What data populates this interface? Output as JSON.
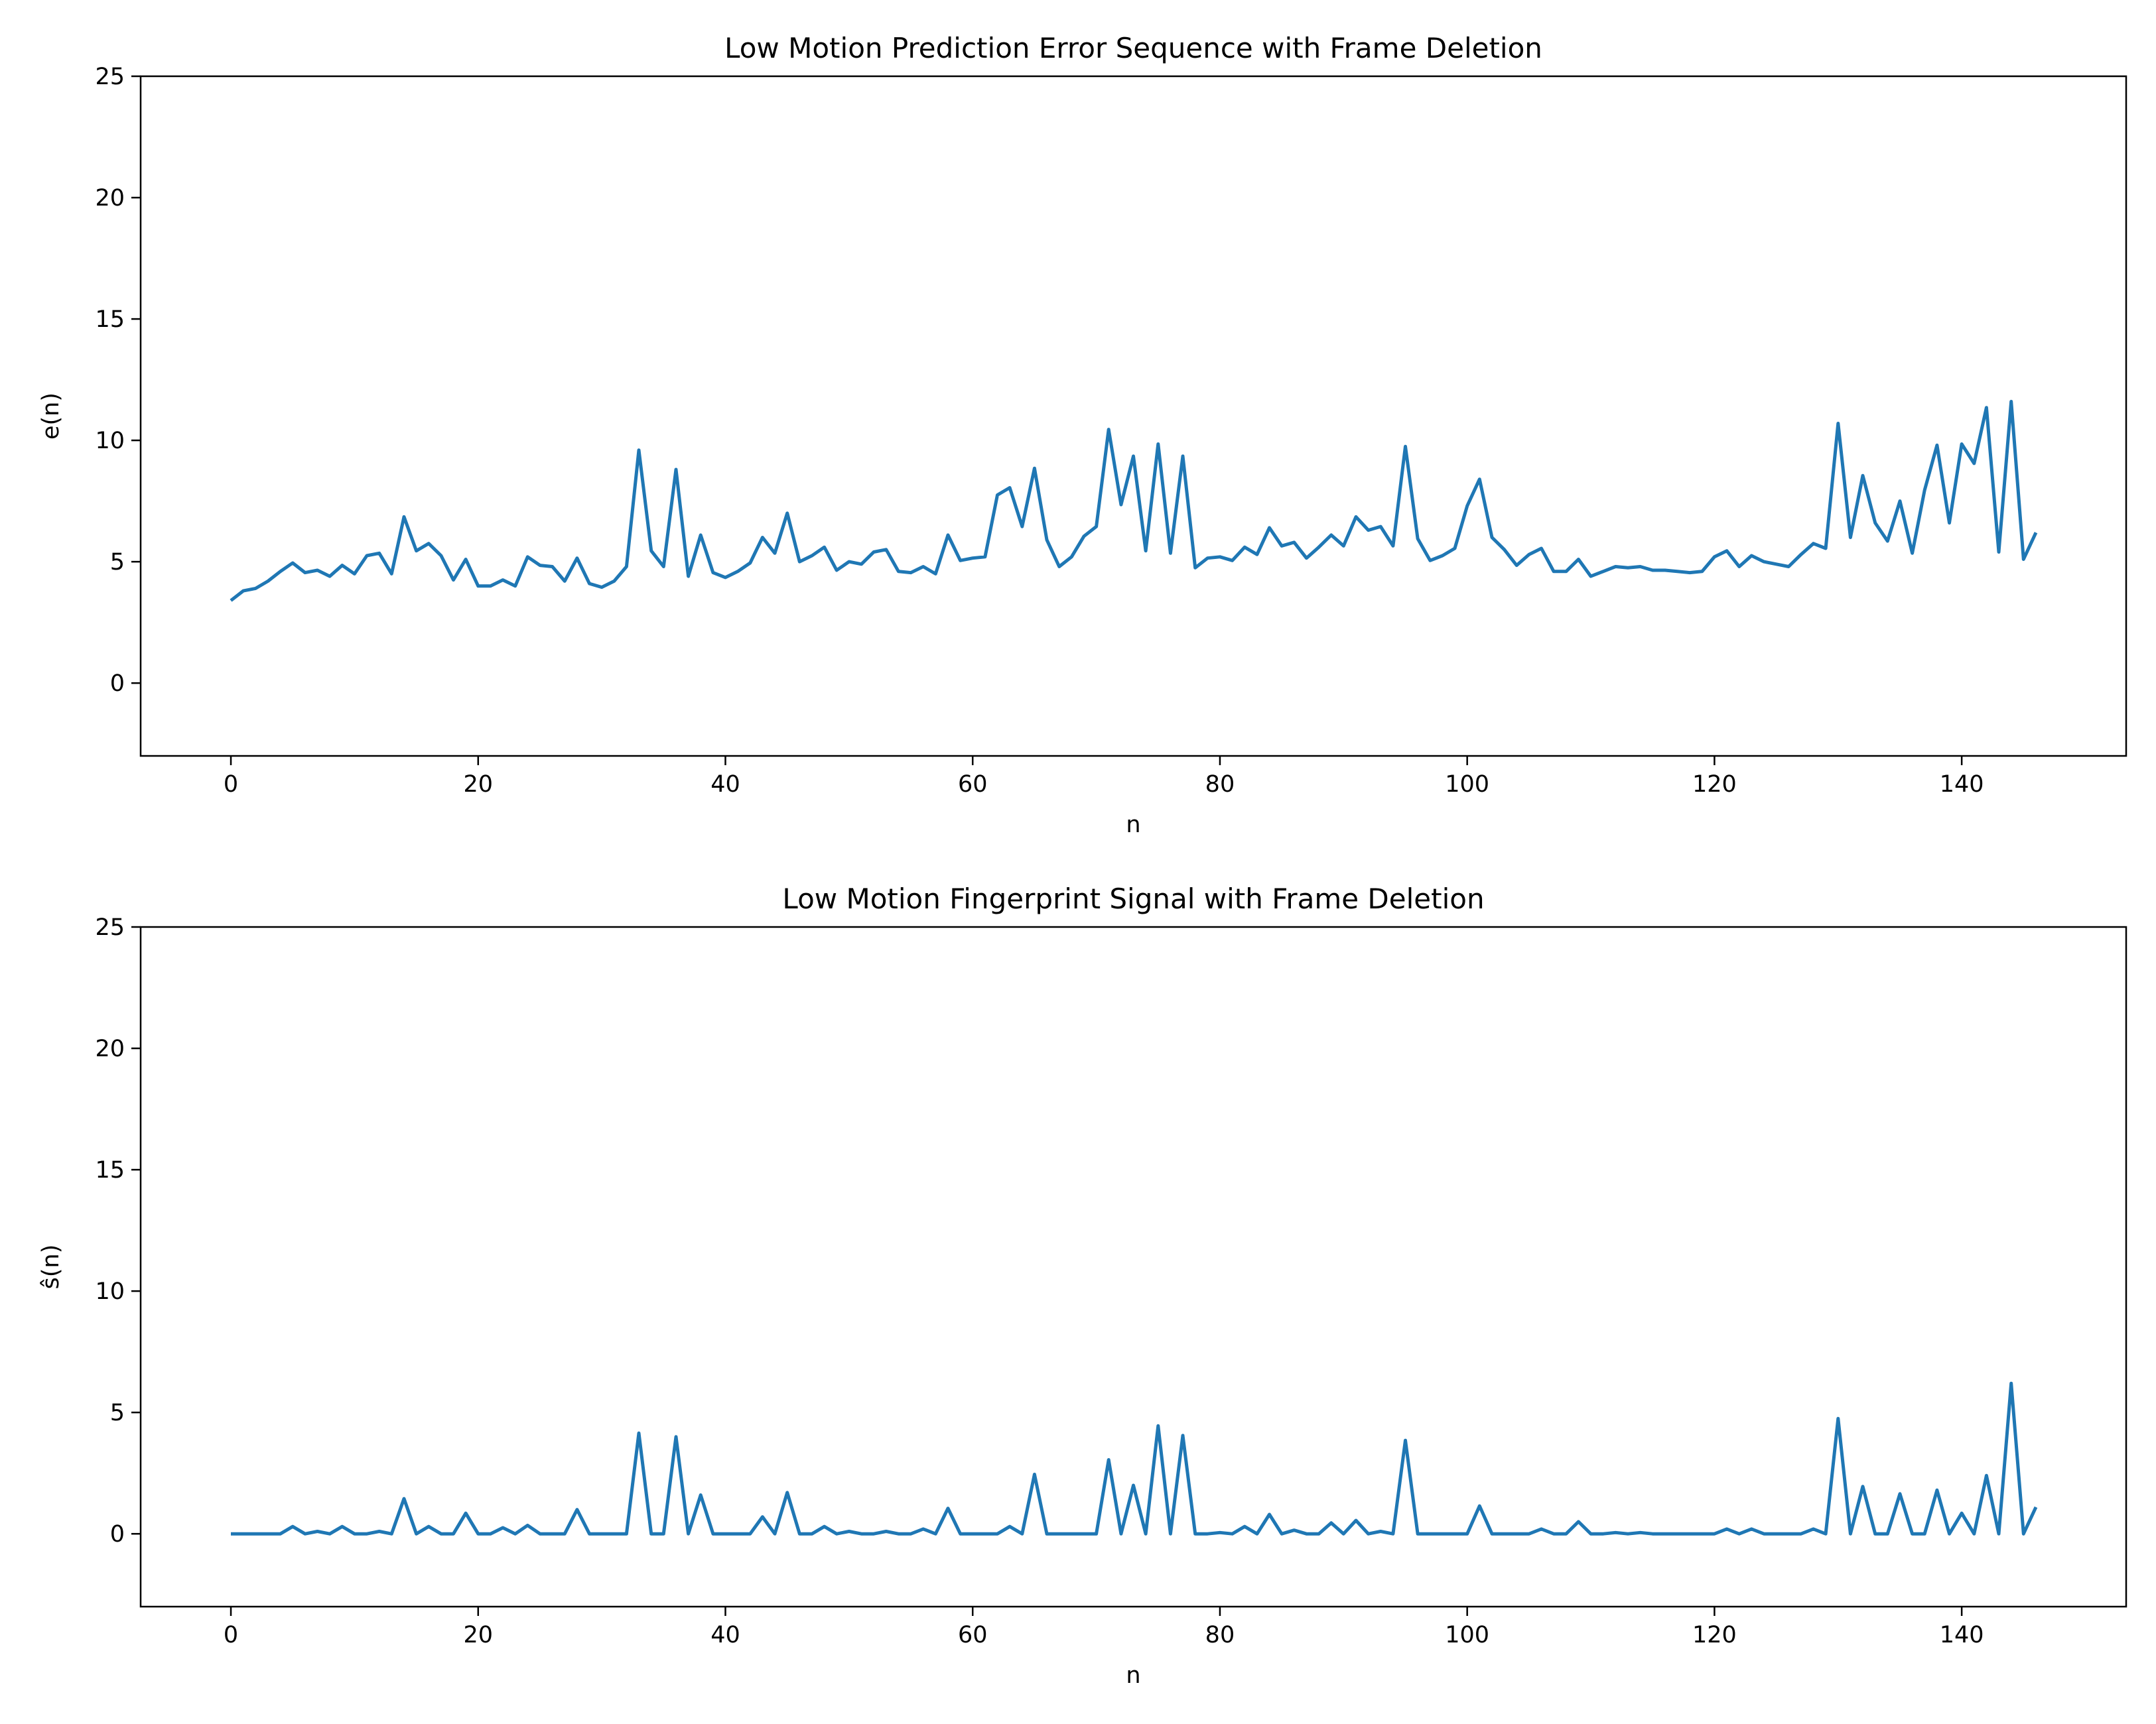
{
  "chart_data": [
    {
      "type": "line",
      "title": "Low Motion Prediction Error Sequence with Frame Deletion",
      "xlabel": "n",
      "ylabel": "e(n)",
      "xlim": [
        -7.3,
        153.3
      ],
      "ylim": [
        -3,
        25
      ],
      "xticks": [
        0,
        20,
        40,
        60,
        80,
        100,
        120,
        140
      ],
      "yticks": [
        0,
        5,
        10,
        15,
        20,
        25
      ],
      "grid": false,
      "color": "#1f77b4",
      "series": [
        {
          "x_start": 0,
          "values": [
            3.4,
            3.8,
            3.9,
            4.2,
            4.6,
            4.95,
            4.55,
            4.65,
            4.4,
            4.85,
            4.5,
            5.25,
            5.35,
            4.5,
            6.85,
            5.45,
            5.75,
            5.25,
            4.25,
            5.1,
            4.0,
            4.0,
            4.25,
            4.0,
            5.2,
            4.85,
            4.8,
            4.2,
            5.15,
            4.1,
            3.95,
            4.2,
            4.8,
            9.6,
            5.45,
            4.8,
            8.8,
            4.4,
            6.1,
            4.55,
            4.35,
            4.6,
            4.95,
            6.0,
            5.35,
            7.0,
            5.0,
            5.25,
            5.6,
            4.65,
            5.0,
            4.9,
            5.4,
            5.5,
            4.6,
            4.55,
            4.8,
            4.5,
            6.1,
            5.05,
            5.15,
            5.2,
            7.75,
            8.05,
            6.45,
            8.85,
            5.9,
            4.8,
            5.2,
            6.05,
            6.45,
            10.45,
            7.35,
            9.35,
            5.45,
            9.85,
            5.35,
            9.35,
            4.75,
            5.15,
            5.2,
            5.05,
            5.6,
            5.3,
            6.4,
            5.65,
            5.8,
            5.15,
            5.6,
            6.1,
            5.65,
            6.85,
            6.3,
            6.45,
            5.65,
            9.75,
            5.95,
            5.05,
            5.25,
            5.55,
            7.3,
            8.4,
            6.0,
            5.5,
            4.85,
            5.3,
            5.55,
            4.6,
            4.6,
            5.1,
            4.4,
            4.6,
            4.8,
            4.75,
            4.8,
            4.65,
            4.65,
            4.6,
            4.55,
            4.6,
            5.2,
            5.45,
            4.8,
            5.25,
            5.0,
            4.9,
            4.8,
            5.3,
            5.75,
            5.55,
            10.7,
            6.0,
            8.55,
            6.6,
            5.85,
            7.5,
            5.35,
            7.95,
            9.8,
            6.6,
            9.85,
            9.05,
            11.35,
            5.4,
            11.6,
            5.1,
            6.2
          ]
        }
      ]
    },
    {
      "type": "line",
      "title": "Low Motion Fingerprint Signal with Frame Deletion",
      "xlabel": "n",
      "ylabel": "ŝ(n)",
      "xlim": [
        -7.3,
        153.3
      ],
      "ylim": [
        -3,
        25
      ],
      "xticks": [
        0,
        20,
        40,
        60,
        80,
        100,
        120,
        140
      ],
      "yticks": [
        0,
        5,
        10,
        15,
        20,
        25
      ],
      "grid": false,
      "color": "#1f77b4",
      "series": [
        {
          "x_start": 0,
          "values": [
            0,
            0,
            0,
            0,
            0,
            0.3,
            0,
            0.1,
            0,
            0.3,
            0,
            0,
            0.1,
            0,
            1.45,
            0,
            0.3,
            0,
            0,
            0.85,
            0,
            0,
            0.25,
            0,
            0.35,
            0,
            0,
            0,
            1.0,
            0,
            0,
            0,
            0,
            4.15,
            0,
            0,
            4.0,
            0,
            1.6,
            0,
            0,
            0,
            0,
            0.7,
            0,
            1.7,
            0,
            0,
            0.3,
            0,
            0.1,
            0,
            0,
            0.1,
            0,
            0,
            0.2,
            0,
            1.05,
            0,
            0,
            0,
            0,
            0.3,
            0,
            2.45,
            0,
            0,
            0,
            0,
            0,
            3.05,
            0,
            2.0,
            0,
            4.45,
            0,
            4.05,
            0,
            0,
            0.05,
            0,
            0.3,
            0,
            0.8,
            0,
            0.15,
            0,
            0,
            0.45,
            0,
            0.55,
            0,
            0.1,
            0,
            3.85,
            0,
            0,
            0,
            0,
            0,
            1.15,
            0,
            0,
            0,
            0,
            0.2,
            0,
            0,
            0.5,
            0,
            0,
            0.05,
            0,
            0.05,
            0,
            0,
            0,
            0,
            0,
            0,
            0.2,
            0,
            0.2,
            0,
            0,
            0,
            0,
            0.2,
            0,
            4.75,
            0,
            1.95,
            0,
            0,
            1.65,
            0,
            0,
            1.8,
            0,
            0.85,
            0,
            2.4,
            0,
            6.2,
            0,
            1.1
          ]
        }
      ]
    }
  ]
}
